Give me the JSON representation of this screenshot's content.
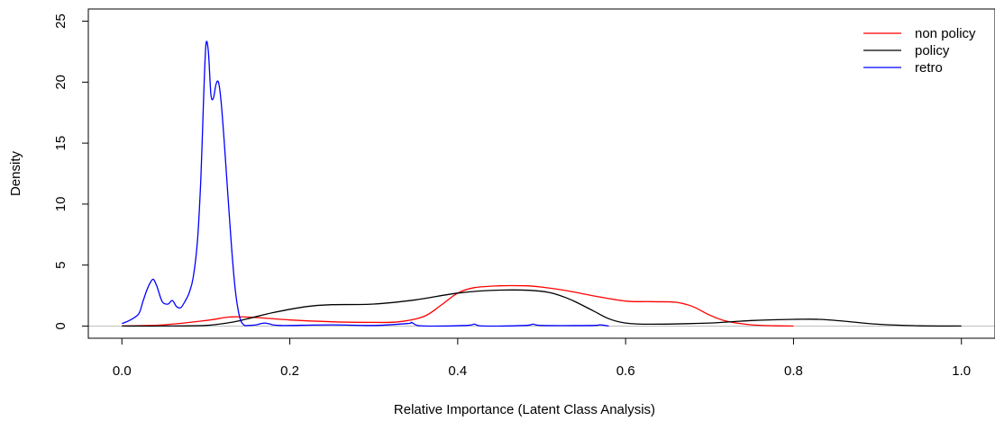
{
  "chart_data": {
    "type": "line",
    "title": "",
    "xlabel": "Relative Importance (Latent Class Analysis)",
    "ylabel": "Density",
    "xlim": [
      -0.04,
      1.04
    ],
    "ylim": [
      -1.0,
      26.0
    ],
    "xticks": [
      {
        "value": 0.0,
        "label": "0.0"
      },
      {
        "value": 0.2,
        "label": "0.2"
      },
      {
        "value": 0.4,
        "label": "0.4"
      },
      {
        "value": 0.6,
        "label": "0.6"
      },
      {
        "value": 0.8,
        "label": "0.8"
      },
      {
        "value": 1.0,
        "label": "1.0"
      }
    ],
    "yticks": [
      {
        "value": 0,
        "label": "0"
      },
      {
        "value": 5,
        "label": "5"
      },
      {
        "value": 10,
        "label": "10"
      },
      {
        "value": 15,
        "label": "15"
      },
      {
        "value": 20,
        "label": "20"
      },
      {
        "value": 25,
        "label": "25"
      }
    ],
    "baseline": {
      "y": 0,
      "color": "#bebebe"
    },
    "legend_position": "top-right",
    "series": [
      {
        "name": "non policy",
        "color": "#ff0000",
        "x": [
          0.0,
          0.05,
          0.1,
          0.13,
          0.16,
          0.2,
          0.25,
          0.3,
          0.33,
          0.36,
          0.38,
          0.4,
          0.42,
          0.45,
          0.48,
          0.5,
          0.53,
          0.56,
          0.6,
          0.63,
          0.66,
          0.68,
          0.7,
          0.72,
          0.75,
          0.78,
          0.8
        ],
        "y": [
          0.0,
          0.1,
          0.45,
          0.75,
          0.7,
          0.5,
          0.35,
          0.3,
          0.35,
          0.8,
          1.7,
          2.7,
          3.15,
          3.3,
          3.3,
          3.2,
          2.9,
          2.5,
          2.05,
          2.0,
          1.95,
          1.6,
          0.9,
          0.4,
          0.1,
          0.02,
          0.0
        ]
      },
      {
        "name": "policy",
        "color": "#000000",
        "x": [
          0.0,
          0.05,
          0.1,
          0.13,
          0.15,
          0.18,
          0.22,
          0.25,
          0.3,
          0.35,
          0.4,
          0.45,
          0.5,
          0.53,
          0.56,
          0.58,
          0.6,
          0.63,
          0.7,
          0.75,
          0.8,
          0.83,
          0.86,
          0.9,
          0.95,
          1.0
        ],
        "y": [
          0.0,
          0.0,
          0.05,
          0.3,
          0.6,
          1.1,
          1.6,
          1.75,
          1.8,
          2.15,
          2.7,
          2.95,
          2.85,
          2.3,
          1.3,
          0.6,
          0.25,
          0.15,
          0.25,
          0.45,
          0.55,
          0.55,
          0.4,
          0.15,
          0.02,
          0.0
        ]
      },
      {
        "name": "retro",
        "color": "#0000ff",
        "x": [
          0.0,
          0.01,
          0.02,
          0.025,
          0.03,
          0.035,
          0.038,
          0.042,
          0.048,
          0.055,
          0.06,
          0.065,
          0.07,
          0.075,
          0.08,
          0.085,
          0.09,
          0.094,
          0.097,
          0.1,
          0.103,
          0.106,
          0.109,
          0.112,
          0.115,
          0.118,
          0.122,
          0.126,
          0.13,
          0.135,
          0.14,
          0.145,
          0.15,
          0.16,
          0.17,
          0.18,
          0.19,
          0.2,
          0.25,
          0.3,
          0.34,
          0.345,
          0.35,
          0.36,
          0.41,
          0.42,
          0.43,
          0.48,
          0.49,
          0.5,
          0.56,
          0.57,
          0.58
        ],
        "y": [
          0.2,
          0.5,
          1.0,
          2.0,
          3.0,
          3.7,
          3.8,
          3.2,
          2.0,
          1.8,
          2.1,
          1.6,
          1.5,
          2.0,
          2.7,
          4.0,
          7.0,
          12.0,
          18.0,
          23.0,
          22.5,
          19.0,
          18.7,
          19.8,
          20.0,
          18.5,
          15.0,
          11.0,
          7.0,
          3.0,
          0.8,
          0.1,
          0.05,
          0.1,
          0.25,
          0.1,
          0.05,
          0.05,
          0.1,
          0.05,
          0.2,
          0.3,
          0.1,
          0.0,
          0.05,
          0.15,
          0.0,
          0.05,
          0.15,
          0.05,
          0.05,
          0.1,
          0.0
        ]
      }
    ]
  }
}
